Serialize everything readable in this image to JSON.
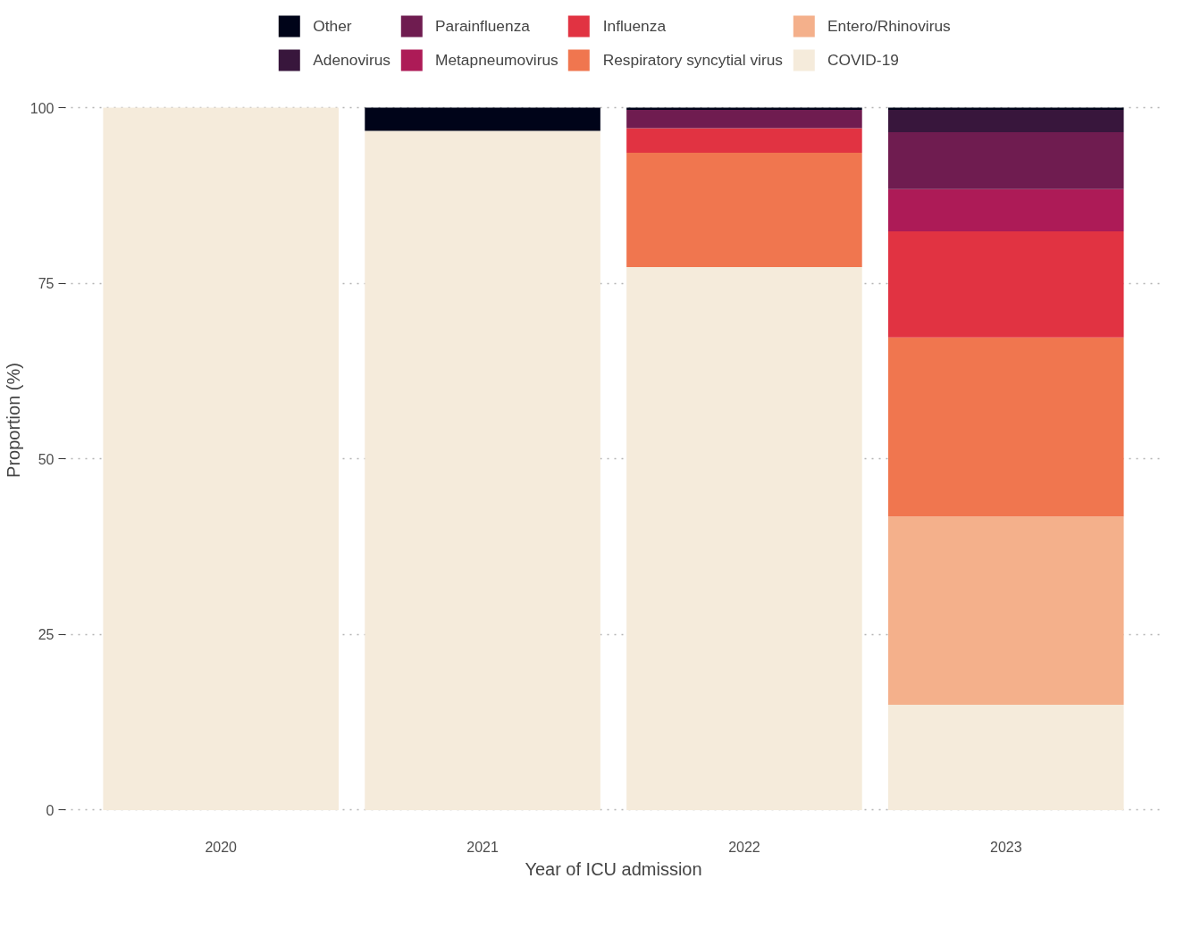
{
  "chart_data": {
    "type": "bar",
    "stacked": true,
    "xlabel": "Year of ICU admission",
    "ylabel": "Proportion (%)",
    "categories": [
      "2020",
      "2021",
      "2022",
      "2023"
    ],
    "ylim": [
      0,
      100
    ],
    "yticks": [
      0,
      25,
      50,
      75,
      100
    ],
    "grid": "y",
    "legend": "top",
    "series": [
      {
        "name": "COVID-19",
        "color": "#f5ebdb",
        "values": [
          100,
          96.7,
          77.3,
          15.0
        ]
      },
      {
        "name": "Entero/Rhinovirus",
        "color": "#f4b08b",
        "values": [
          0,
          0,
          0,
          26.8
        ]
      },
      {
        "name": "Respiratory syncytial virus",
        "color": "#f0764f",
        "values": [
          0,
          0,
          16.3,
          25.5
        ]
      },
      {
        "name": "Influenza",
        "color": "#e13342",
        "values": [
          0,
          0,
          3.5,
          15.1
        ]
      },
      {
        "name": "Metapneumovirus",
        "color": "#ad1b57",
        "values": [
          0,
          0,
          0,
          6.0
        ]
      },
      {
        "name": "Parainfluenza",
        "color": "#6f1c50",
        "values": [
          0,
          0,
          2.6,
          8.1
        ]
      },
      {
        "name": "Adenovirus",
        "color": "#38163c",
        "values": [
          0,
          0,
          0,
          3.2
        ]
      },
      {
        "name": "Other",
        "color": "#000419",
        "values": [
          0,
          3.3,
          0.3,
          0.3
        ]
      }
    ]
  }
}
